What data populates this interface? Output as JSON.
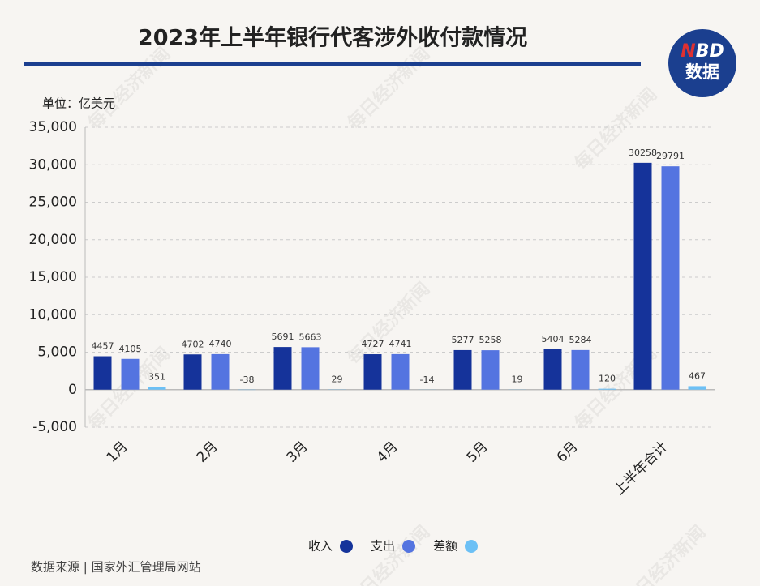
{
  "chart_data": {
    "type": "bar",
    "title": "2023年上半年银行代客涉外收付款情况",
    "unit": "单位：亿美元",
    "source": "数据来源 | 国家外汇管理局网站",
    "logo": {
      "red": "N",
      "white": "BD",
      "sub": "数据"
    },
    "watermark": "每日经济新闻",
    "categories": [
      "1月",
      "2月",
      "3月",
      "4月",
      "5月",
      "6月",
      "上半年合计"
    ],
    "series": [
      {
        "name": "收入",
        "color": "#15339a",
        "values": [
          4457,
          4702,
          5691,
          4727,
          5277,
          5404,
          30258
        ]
      },
      {
        "name": "支出",
        "color": "#5474e0",
        "values": [
          4105,
          4740,
          5663,
          4741,
          5258,
          5284,
          29791
        ]
      },
      {
        "name": "差额",
        "color": "#6cc0f5",
        "values": [
          351,
          -38,
          29,
          -14,
          19,
          120,
          467
        ]
      }
    ],
    "ylim": [
      -5000,
      35000
    ],
    "yticks": [
      {
        "value": -5000,
        "label": "-5,000"
      },
      0,
      {
        "value": 5000,
        "label": "5,000"
      },
      {
        "value": 10000,
        "label": "10,000"
      },
      {
        "value": 15000,
        "label": "15,000"
      },
      {
        "value": 20000,
        "label": "20,000"
      },
      {
        "value": 25000,
        "label": "25,000"
      },
      {
        "value": 30000,
        "label": "30,000"
      },
      {
        "value": 35000,
        "label": "35,000"
      }
    ],
    "grid": true,
    "legend": "bottom"
  }
}
